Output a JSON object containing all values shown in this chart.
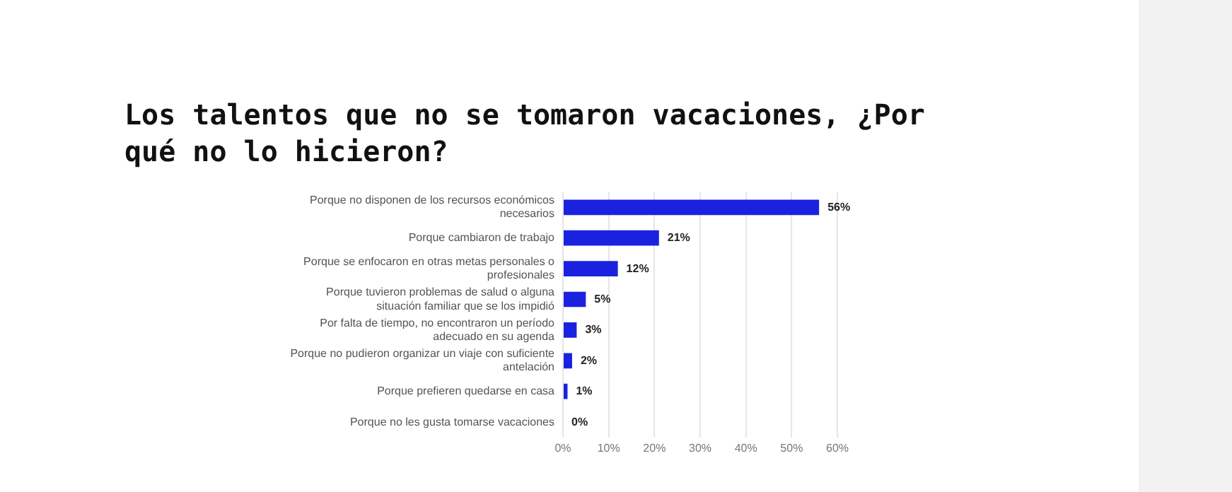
{
  "chart_data": {
    "type": "bar",
    "orientation": "horizontal",
    "title": "Los talentos que no se tomaron vacaciones, ¿Por qué no lo hicieron?",
    "categories": [
      "Porque no disponen de los recursos económicos necesarios",
      "Porque cambiaron de trabajo",
      "Porque se enfocaron en otras metas personales o profesionales",
      "Porque tuvieron problemas de salud o alguna situación familiar que se los impidió",
      "Por falta de tiempo, no encontraron un período adecuado en su agenda",
      "Porque no pudieron organizar un viaje con suficiente antelación",
      "Porque prefieren quedarse en casa",
      "Porque no les gusta tomarse vacaciones"
    ],
    "values": [
      56,
      21,
      12,
      5,
      3,
      2,
      1,
      0
    ],
    "value_labels": [
      "56%",
      "21%",
      "12%",
      "5%",
      "3%",
      "2%",
      "1%",
      "0%"
    ],
    "color": "#1a22e0",
    "xlim": [
      0,
      60
    ],
    "xticks": [
      {
        "value": 0,
        "label": "0%"
      },
      {
        "value": 10,
        "label": "10%"
      },
      {
        "value": 20,
        "label": "20%"
      },
      {
        "value": 30,
        "label": "30%"
      },
      {
        "value": 40,
        "label": "40%"
      },
      {
        "value": 50,
        "label": "50%"
      },
      {
        "value": 60,
        "label": "60%"
      }
    ],
    "grid": "x",
    "legend": false
  }
}
